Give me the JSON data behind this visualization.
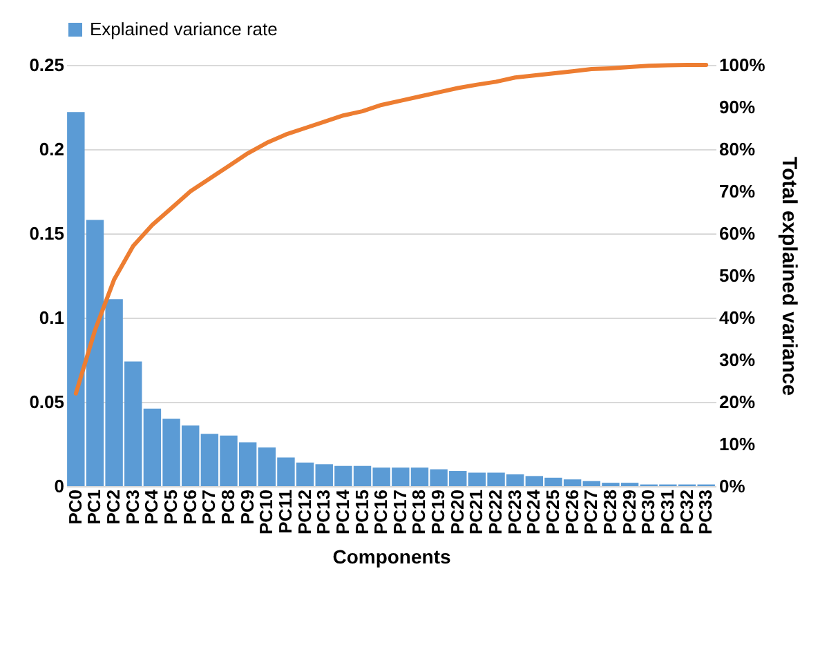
{
  "chart_data": {
    "type": "bar",
    "xlabel": "Components",
    "y2label": "Total explained variance",
    "categories": [
      "PC0",
      "PC1",
      "PC2",
      "PC3",
      "PC4",
      "PC5",
      "PC6",
      "PC7",
      "PC8",
      "PC9",
      "PC10",
      "PC11",
      "PC12",
      "PC13",
      "PC14",
      "PC15",
      "PC16",
      "PC17",
      "PC18",
      "PC19",
      "PC20",
      "PC21",
      "PC22",
      "PC23",
      "PC24",
      "PC25",
      "PC26",
      "PC27",
      "PC28",
      "PC29",
      "PC30",
      "PC31",
      "PC32",
      "PC33"
    ],
    "series": [
      {
        "name": "Explained variance rate",
        "color": "#5b9bd5",
        "values": [
          0.222,
          0.158,
          0.111,
          0.074,
          0.046,
          0.04,
          0.036,
          0.031,
          0.03,
          0.026,
          0.023,
          0.017,
          0.014,
          0.013,
          0.012,
          0.012,
          0.011,
          0.011,
          0.011,
          0.01,
          0.009,
          0.008,
          0.008,
          0.007,
          0.006,
          0.005,
          0.004,
          0.003,
          0.002,
          0.002,
          0.001,
          0.001,
          0.001,
          0.001
        ]
      },
      {
        "type": "line",
        "axis": "y2",
        "color": "#ed7d31",
        "values": [
          22,
          37,
          49,
          57,
          62,
          66,
          70,
          73,
          76,
          79,
          81.5,
          83.5,
          85,
          86.5,
          88,
          89,
          90.5,
          91.5,
          92.5,
          93.5,
          94.5,
          95.3,
          96,
          97,
          97.5,
          98,
          98.5,
          99,
          99.2,
          99.5,
          99.8,
          99.9,
          100,
          100
        ]
      }
    ],
    "ylim": [
      0,
      0.25
    ],
    "yticks": [
      0,
      0.05,
      0.1,
      0.15,
      0.2,
      0.25
    ],
    "y2lim": [
      0,
      100
    ],
    "y2ticks": [
      {
        "value": 0,
        "label": "0%"
      },
      {
        "value": 10,
        "label": "10%"
      },
      {
        "value": 20,
        "label": "20%"
      },
      {
        "value": 30,
        "label": "30%"
      },
      {
        "value": 40,
        "label": "40%"
      },
      {
        "value": 50,
        "label": "50%"
      },
      {
        "value": 60,
        "label": "60%"
      },
      {
        "value": 70,
        "label": "70%"
      },
      {
        "value": 80,
        "label": "80%"
      },
      {
        "value": 90,
        "label": "90%"
      },
      {
        "value": 100,
        "label": "100%"
      }
    ],
    "grid": "y",
    "legend": "top"
  }
}
